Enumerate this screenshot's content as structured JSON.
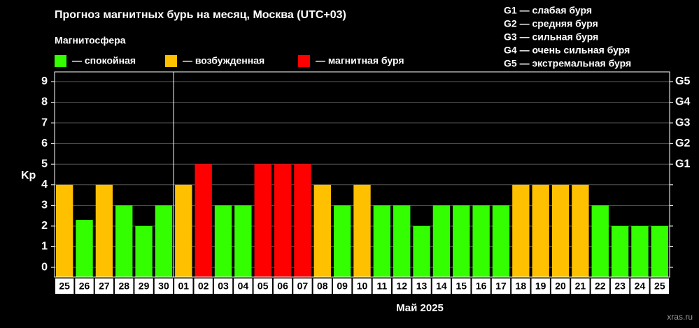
{
  "chart_data": {
    "type": "bar",
    "title": "Прогноз магнитных бурь на месяц, Москва (UTC+03)",
    "legend_title": "Магнитосфера",
    "legend": [
      {
        "label": "— спокойная",
        "color": "#33ff00"
      },
      {
        "label": "— возбужденная",
        "color": "#ffc000"
      },
      {
        "label": "— магнитная буря",
        "color": "#ff0000"
      }
    ],
    "notes": [
      "G1 — слабая буря",
      "G2 — средняя буря",
      "G3 — сильная буря",
      "G4 — очень сильная буря",
      "G5 — экстремальная буря"
    ],
    "y_label": "Kp",
    "x_label": "Май 2025",
    "source": "xras.ru",
    "categories": [
      "25",
      "26",
      "27",
      "28",
      "29",
      "30",
      "01",
      "02",
      "03",
      "04",
      "05",
      "06",
      "07",
      "08",
      "09",
      "10",
      "11",
      "12",
      "13",
      "14",
      "15",
      "16",
      "17",
      "18",
      "19",
      "20",
      "21",
      "22",
      "23",
      "24",
      "25"
    ],
    "values": [
      4,
      2.3,
      4,
      3,
      2,
      3,
      4,
      5,
      3,
      3,
      5,
      5,
      5,
      4,
      3,
      4,
      3,
      3,
      2,
      3,
      3,
      3,
      3,
      4,
      4,
      4,
      4,
      3,
      2,
      2,
      2
    ],
    "colors": [
      "#ffc000",
      "#33ff00",
      "#ffc000",
      "#33ff00",
      "#33ff00",
      "#33ff00",
      "#ffc000",
      "#ff0000",
      "#33ff00",
      "#33ff00",
      "#ff0000",
      "#ff0000",
      "#ff0000",
      "#ffc000",
      "#33ff00",
      "#ffc000",
      "#33ff00",
      "#33ff00",
      "#33ff00",
      "#33ff00",
      "#33ff00",
      "#33ff00",
      "#33ff00",
      "#ffc000",
      "#ffc000",
      "#ffc000",
      "#ffc000",
      "#33ff00",
      "#33ff00",
      "#33ff00",
      "#33ff00"
    ],
    "ylim": [
      -0.47,
      9.47
    ],
    "yticks": [
      0,
      1,
      2,
      3,
      4,
      5,
      6,
      7,
      8,
      9
    ],
    "y2ticks": [
      {
        "value": 5,
        "label": "G1"
      },
      {
        "value": 6,
        "label": "G2"
      },
      {
        "value": 7,
        "label": "G3"
      },
      {
        "value": 8,
        "label": "G4"
      },
      {
        "value": 9,
        "label": "G5"
      }
    ],
    "grid": true
  }
}
